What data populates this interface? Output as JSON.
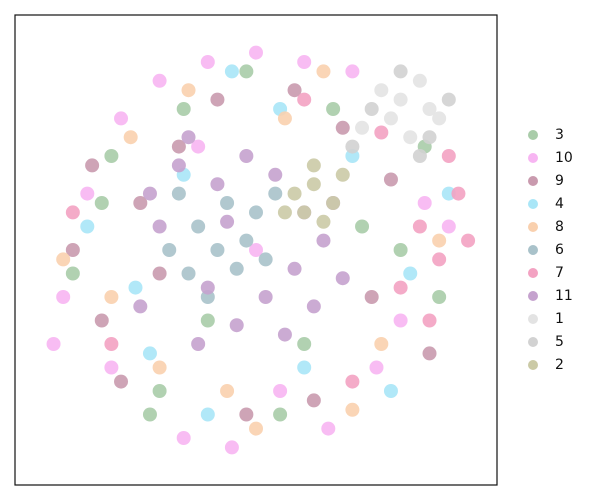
{
  "chart_data": {
    "type": "scatter",
    "xlim": [
      0,
      100
    ],
    "ylim": [
      0,
      100
    ],
    "series": [
      {
        "name": "3",
        "color": "#a9cca9",
        "x": [
          20,
          35,
          72,
          85,
          12,
          48,
          60,
          30,
          80,
          18,
          55,
          66,
          88,
          40,
          28
        ],
        "y": [
          70,
          80,
          55,
          72,
          45,
          88,
          30,
          20,
          50,
          60,
          15,
          80,
          40,
          35,
          15
        ]
      },
      {
        "name": "10",
        "color": "#f7b5f2",
        "x": [
          10,
          15,
          22,
          30,
          40,
          50,
          60,
          70,
          80,
          90,
          8,
          45,
          65,
          35,
          55,
          75,
          20,
          85,
          50,
          38
        ],
        "y": [
          40,
          62,
          78,
          86,
          90,
          92,
          90,
          88,
          35,
          55,
          30,
          8,
          12,
          10,
          20,
          25,
          25,
          60,
          50,
          72
        ]
      },
      {
        "name": "9",
        "color": "#c99aae",
        "x": [
          12,
          18,
          26,
          34,
          42,
          58,
          68,
          78,
          86,
          22,
          30,
          62,
          48,
          74,
          16
        ],
        "y": [
          50,
          35,
          60,
          72,
          82,
          84,
          76,
          65,
          28,
          22,
          45,
          18,
          15,
          40,
          68
        ]
      },
      {
        "name": "4",
        "color": "#a9e6f7",
        "x": [
          15,
          28,
          40,
          55,
          70,
          82,
          90,
          25,
          60,
          45,
          35,
          78
        ],
        "y": [
          55,
          28,
          15,
          80,
          70,
          45,
          62,
          42,
          25,
          88,
          66,
          20
        ]
      },
      {
        "name": "8",
        "color": "#f9d0ae",
        "x": [
          10,
          24,
          36,
          50,
          64,
          76,
          88,
          30,
          56,
          44,
          70,
          20
        ],
        "y": [
          48,
          74,
          84,
          12,
          88,
          30,
          52,
          25,
          78,
          20,
          16,
          40
        ]
      },
      {
        "name": "6",
        "color": "#a9c2ca",
        "x": [
          32,
          38,
          44,
          50,
          36,
          42,
          48,
          54,
          40,
          46,
          52,
          34
        ],
        "y": [
          50,
          55,
          60,
          58,
          45,
          50,
          52,
          62,
          40,
          46,
          48,
          62
        ]
      },
      {
        "name": "7",
        "color": "#f3a2c2",
        "x": [
          84,
          88,
          92,
          80,
          86,
          90,
          70,
          76,
          12,
          20,
          60,
          94
        ],
        "y": [
          55,
          48,
          62,
          42,
          35,
          70,
          22,
          75,
          58,
          30,
          82,
          52
        ]
      },
      {
        "name": "11",
        "color": "#c5a2ce",
        "x": [
          26,
          30,
          34,
          40,
          46,
          52,
          58,
          64,
          68,
          28,
          38,
          48,
          56,
          62,
          44,
          36,
          54,
          60,
          66,
          42
        ],
        "y": [
          38,
          55,
          68,
          42,
          34,
          40,
          46,
          52,
          44,
          62,
          30,
          70,
          32,
          38,
          56,
          74,
          66,
          58,
          60,
          64
        ]
      },
      {
        "name": "1",
        "color": "#e3e3e3",
        "x": [
          76,
          80,
          84,
          88,
          78,
          82,
          86,
          72
        ],
        "y": [
          84,
          82,
          86,
          78,
          78,
          74,
          80,
          76
        ]
      },
      {
        "name": "5",
        "color": "#d2d2d2",
        "x": [
          74,
          80,
          86,
          90,
          84,
          70
        ],
        "y": [
          80,
          88,
          74,
          82,
          70,
          72
        ]
      },
      {
        "name": "2",
        "color": "#cbcaa6",
        "x": [
          58,
          62,
          66,
          60,
          64,
          68,
          56,
          62
        ],
        "y": [
          62,
          64,
          60,
          58,
          56,
          66,
          58,
          68
        ]
      }
    ]
  }
}
